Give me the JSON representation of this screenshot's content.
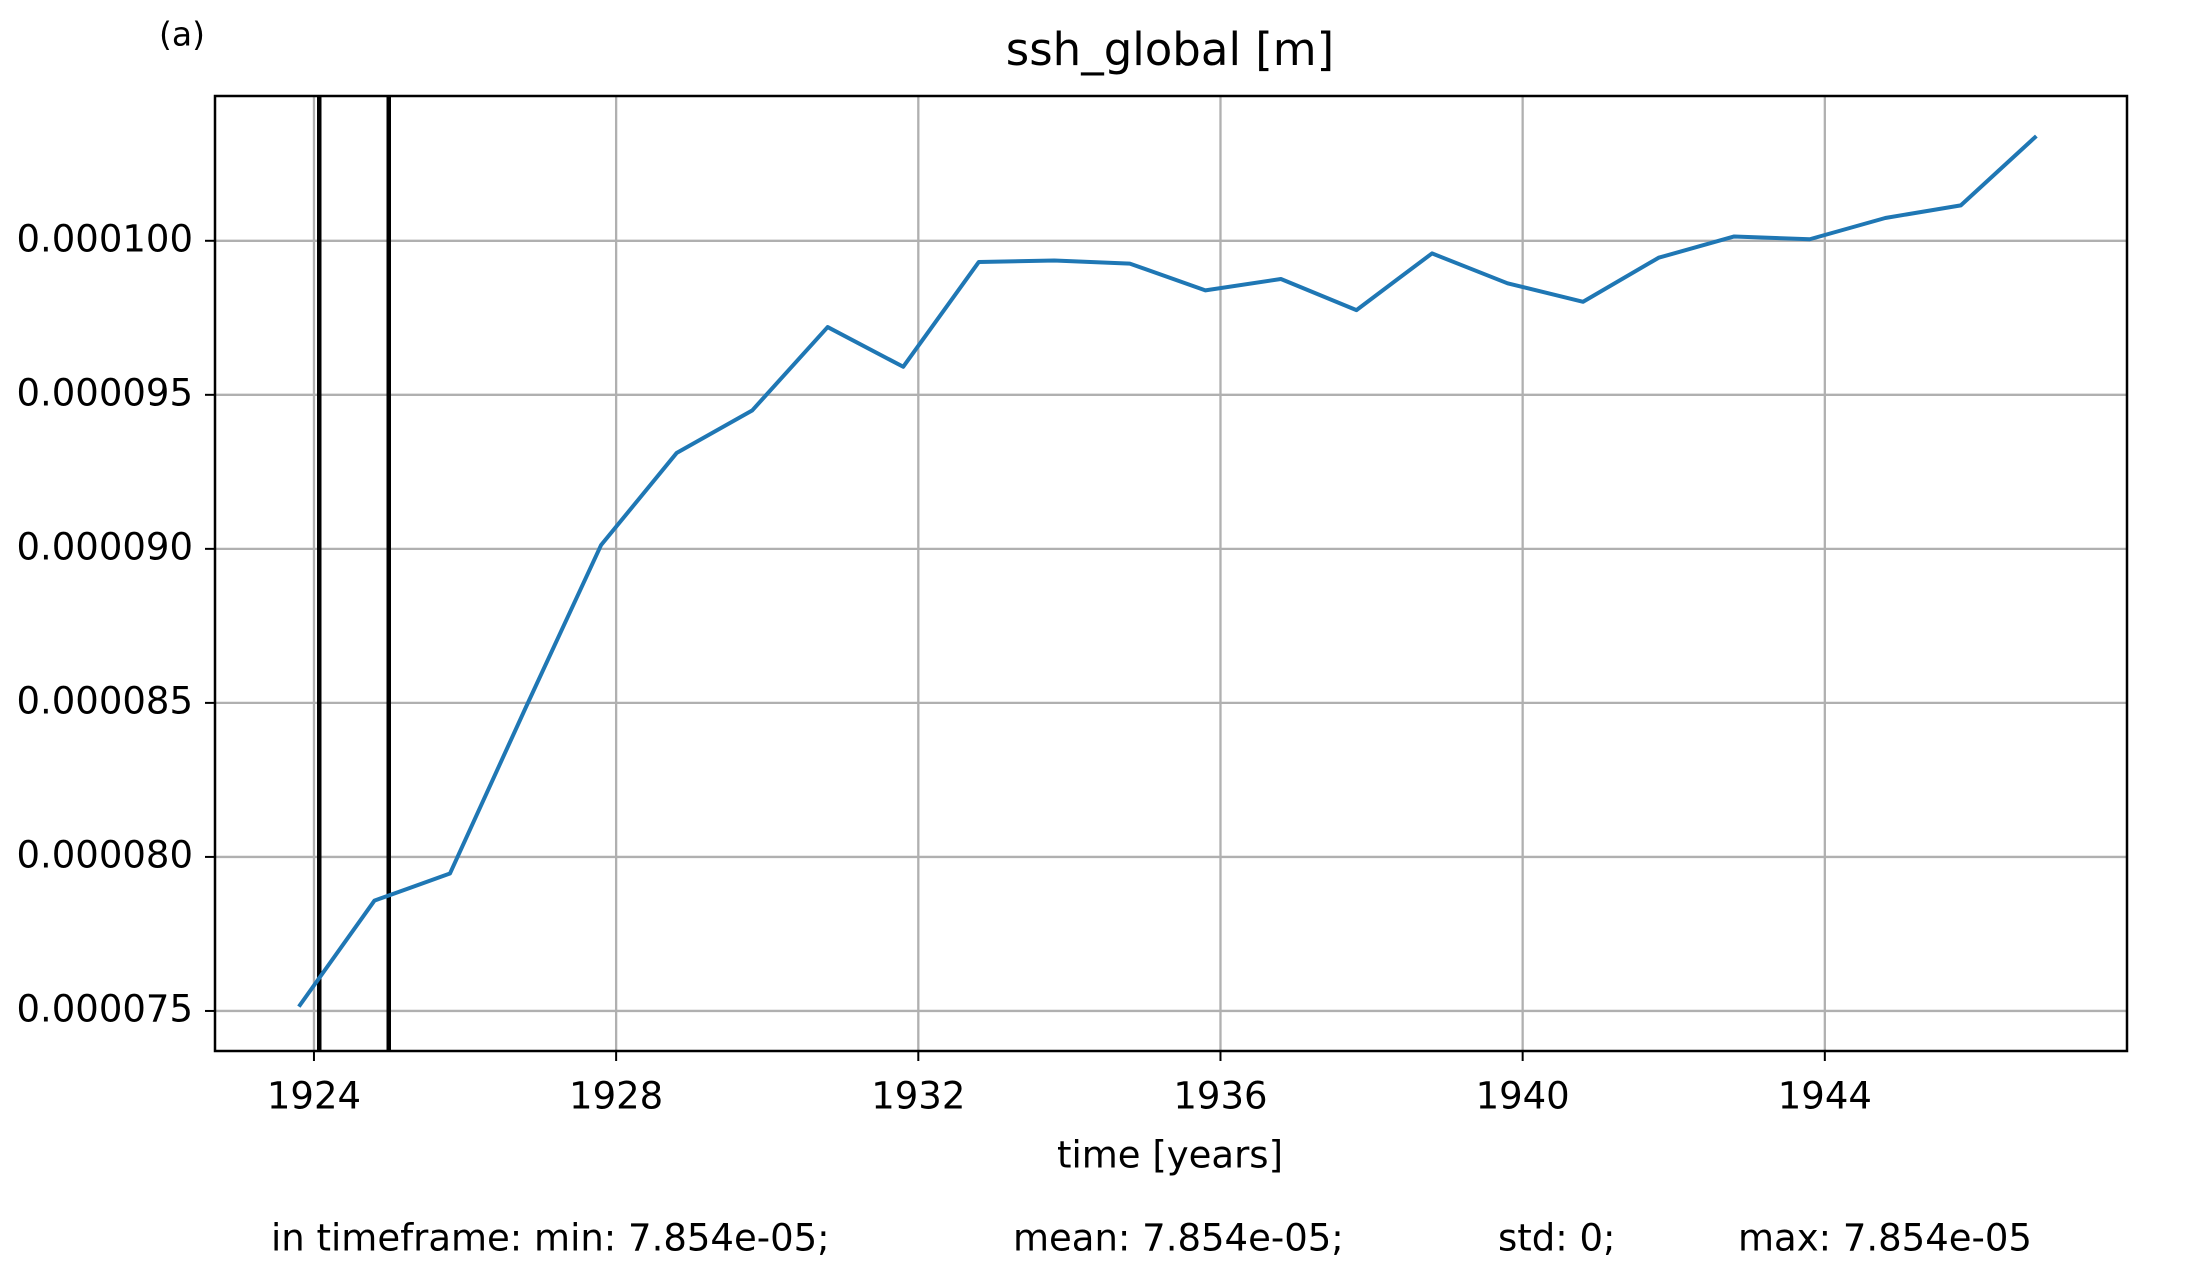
{
  "chart_data": {
    "type": "line",
    "panel_label": "(a)",
    "title": "ssh_global [m]",
    "x_label": "time [years]",
    "x": [
      1923.8,
      1924.8,
      1925.8,
      1926.8,
      1927.8,
      1928.8,
      1929.8,
      1930.8,
      1931.8,
      1932.8,
      1933.8,
      1934.8,
      1935.8,
      1936.8,
      1937.8,
      1938.8,
      1939.8,
      1940.8,
      1941.8,
      1942.8,
      1943.8,
      1944.8,
      1945.8,
      1946.8
    ],
    "series": [
      {
        "name": "ssh_global",
        "color": "#1f77b4",
        "values": [
          7.514e-05,
          7.858e-05,
          7.946e-05,
          8.483e-05,
          9.012e-05,
          9.311e-05,
          9.449e-05,
          9.72e-05,
          9.591e-05,
          9.931e-05,
          9.936e-05,
          9.926e-05,
          9.839e-05,
          9.876e-05,
          9.775e-05,
          9.959e-05,
          9.862e-05,
          9.802e-05,
          9.945e-05,
          0.00010014,
          0.00010005,
          0.00010074,
          0.00010115,
          0.0001034
        ]
      }
    ],
    "timeframe_lines": [
      1924.07,
      1924.99
    ],
    "xlim": [
      1922.69,
      1948.0
    ],
    "ylim": [
      7.37e-05,
      0.0001047
    ],
    "xticks": [
      1924,
      1928,
      1932,
      1936,
      1940,
      1944
    ],
    "yticks": [
      {
        "value": 7.5e-05,
        "label": "0.000075"
      },
      {
        "value": 8e-05,
        "label": "0.000080"
      },
      {
        "value": 8.5e-05,
        "label": "0.000085"
      },
      {
        "value": 9e-05,
        "label": "0.000090"
      },
      {
        "value": 9.5e-05,
        "label": "0.000095"
      },
      {
        "value": 0.0001,
        "label": "0.000100"
      }
    ],
    "grid": true,
    "footer": [
      "in timeframe: min: 7.854e-05;",
      "mean: 7.854e-05;",
      "std: 0;",
      "max: 7.854e-05"
    ]
  }
}
